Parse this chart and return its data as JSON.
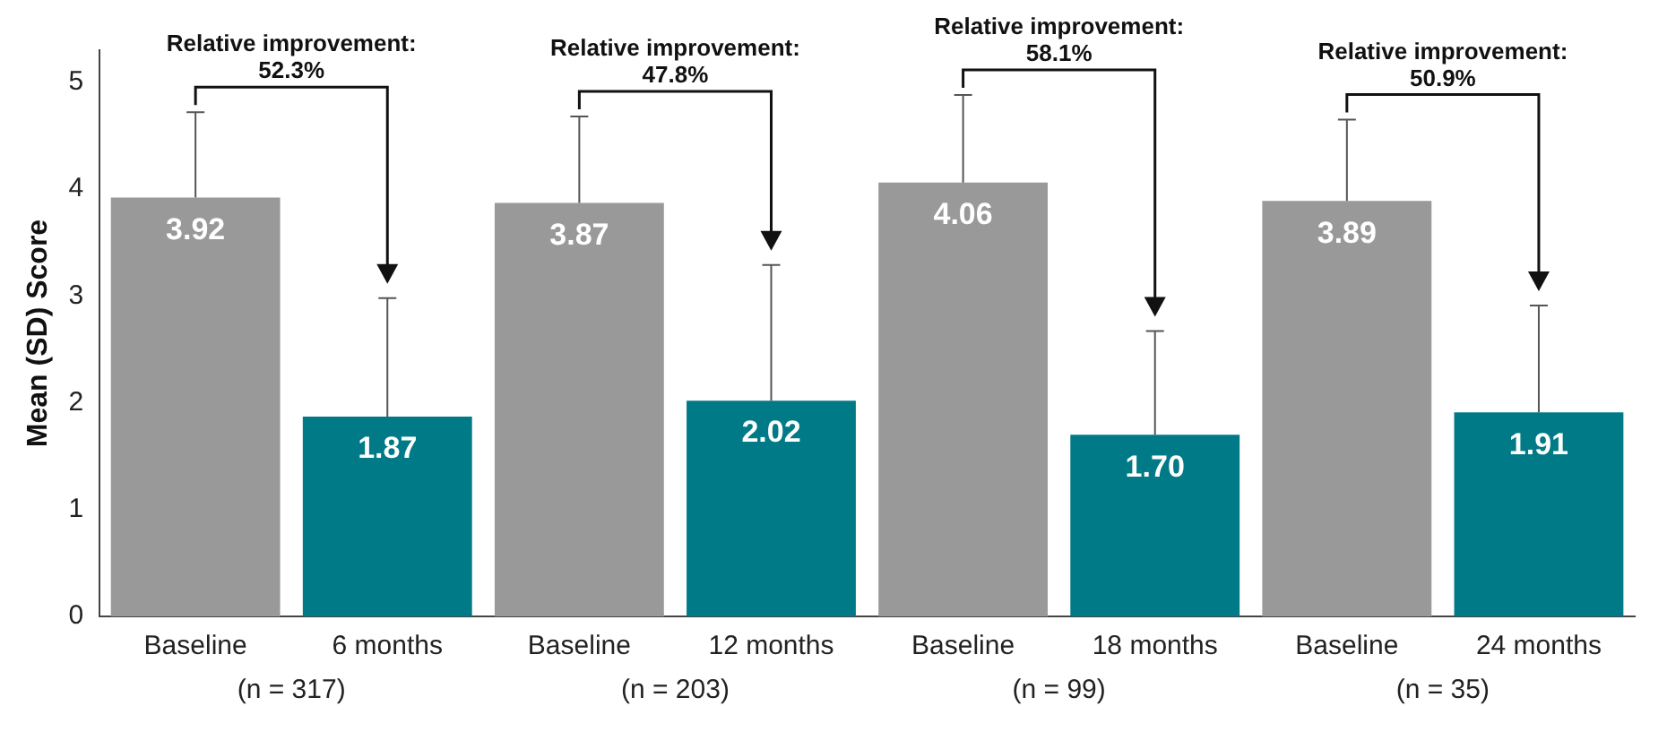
{
  "chart_data": {
    "type": "bar",
    "ylabel": "Mean (SD) Score",
    "categories": [
      "Baseline",
      "6 months",
      "Baseline",
      "12 months",
      "Baseline",
      "18 months",
      "Baseline",
      "24 months"
    ],
    "values": [
      3.92,
      1.87,
      3.87,
      2.02,
      4.06,
      1.7,
      3.89,
      1.91
    ],
    "value_labels": [
      "3.92",
      "1.87",
      "3.87",
      "2.02",
      "4.06",
      "1.70",
      "3.89",
      "1.91"
    ],
    "colors": [
      "#999999",
      "#007a87",
      "#999999",
      "#007a87",
      "#999999",
      "#007a87",
      "#999999",
      "#007a87"
    ],
    "errors": [
      [
        3.92,
        4.72
      ],
      [
        1.87,
        2.98
      ],
      [
        3.87,
        4.68
      ],
      [
        2.02,
        3.29
      ],
      [
        4.06,
        4.88
      ],
      [
        1.7,
        2.67
      ],
      [
        3.89,
        4.65
      ],
      [
        1.91,
        2.91
      ]
    ],
    "ylim": [
      0,
      5.3
    ],
    "yticks": [
      0,
      1,
      2,
      3,
      4,
      5
    ],
    "grid": false,
    "legend": false,
    "annotations": [
      "Relative improvement:\n52.3%",
      "Relative improvement:\n47.8%",
      "Relative improvement:\n58.1%",
      "Relative improvement:\n50.9%",
      "(n = 317)",
      "(n = 203)",
      "(n = 99)",
      "(n = 35)"
    ]
  }
}
